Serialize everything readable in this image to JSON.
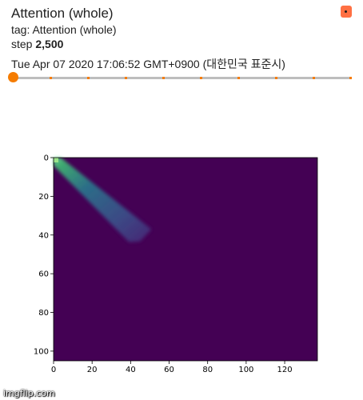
{
  "card": {
    "title": "Attention (whole)",
    "tag_label": "tag: Attention (whole)",
    "step_prefix": "step",
    "step_value": "2,500",
    "timestamp": "Tue Apr 07 2020 17:06:52 GMT+0900 (대한민국 표준시)",
    "corner_icon": "more-icon",
    "accent_color": "#f57c00",
    "corner_color": "#ff7043",
    "slider_progress": 0.0
  },
  "chart_data": {
    "type": "heatmap",
    "title": "",
    "xlabel": "",
    "ylabel": "",
    "xlim": [
      0,
      137
    ],
    "ylim": [
      105,
      0
    ],
    "x_ticks": [
      0,
      20,
      40,
      60,
      80,
      100,
      120
    ],
    "y_ticks": [
      0,
      20,
      40,
      60,
      80,
      100
    ],
    "colormap": "viridis",
    "background_color": "#440154",
    "attention_band": {
      "start": [
        0,
        0
      ],
      "end": [
        45,
        42
      ],
      "peak_color": "#3fbc73"
    }
  },
  "watermark": "imgflip.com"
}
